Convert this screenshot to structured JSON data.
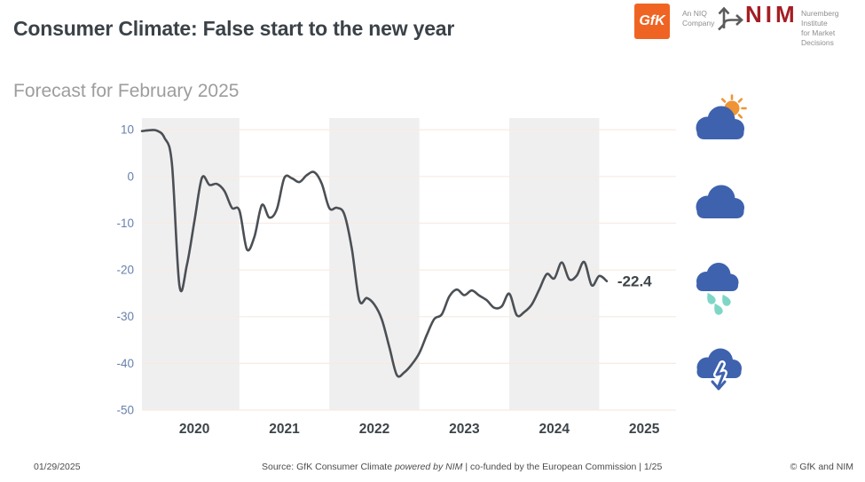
{
  "title": "Consumer Climate: False start to the new year",
  "subtitle": "Forecast for February 2025",
  "logos": {
    "gfk": {
      "label": "GfK",
      "tagline_line1": "An NIQ",
      "tagline_line2": "Company",
      "box_color": "#f06423"
    },
    "nim": {
      "label": "NIM",
      "word_color": "#a41e23",
      "tagline_line1": "Nuremberg Institute",
      "tagline_line2": "for Market Decisions"
    }
  },
  "weather_icons": [
    "sun-behind-cloud",
    "cloud",
    "cloud-with-rain",
    "cloud-with-down-arrow"
  ],
  "colors": {
    "cloud_blue": "#3e62ae",
    "sun_orange": "#ef9434",
    "rain_teal": "#7fd6c7",
    "title_dark": "#3b4247",
    "subtitle_gray": "#9d9d9d"
  },
  "chart_data": {
    "type": "line",
    "title": "",
    "xlabel": "",
    "ylabel": "",
    "x_start_month": "2019-12",
    "x_end_month": "2025-02",
    "x_tick_labels": [
      "2020",
      "2021",
      "2022",
      "2023",
      "2024",
      "2025"
    ],
    "shaded_years": [
      "2020",
      "2022",
      "2024"
    ],
    "y_ticks": [
      10,
      0,
      -10,
      -20,
      -30,
      -40,
      -50
    ],
    "ylim": [
      -50,
      12.5
    ],
    "grid": "horizontal",
    "legend": "none",
    "band_color": "#f0eff0",
    "gridline_color": "#f7ebe2",
    "axis_tick_color": "#6781ae",
    "year_label_color": "#3d4448",
    "last_value_label": "-22.4",
    "series": [
      {
        "name": "GfK Consumer Climate",
        "color": "#4b5055",
        "frequency": "monthly",
        "values": [
          9.7,
          9.9,
          9.8,
          8.3,
          2.7,
          -23.4,
          -18.9,
          -9.6,
          -0.3,
          -1.8,
          -1.6,
          -3.1,
          -6.7,
          -7.3,
          -15.6,
          -12.9,
          -6.1,
          -8.8,
          -7.0,
          -0.3,
          -0.4,
          -1.2,
          0.3,
          0.9,
          -1.6,
          -6.8,
          -6.7,
          -8.1,
          -15.5,
          -26.5,
          -26.0,
          -27.4,
          -30.6,
          -36.5,
          -42.5,
          -41.9,
          -40.2,
          -37.8,
          -33.9,
          -30.5,
          -29.5,
          -25.7,
          -24.2,
          -25.4,
          -24.4,
          -25.5,
          -26.5,
          -28.1,
          -27.8,
          -25.1,
          -29.7,
          -29.0,
          -27.4,
          -24.2,
          -20.9,
          -21.8,
          -18.4,
          -22.0,
          -21.2,
          -18.3,
          -23.3,
          -21.3,
          -22.4
        ]
      }
    ]
  },
  "footer": {
    "date": "01/29/2025",
    "source_prefix": "Source: GfK Consumer Climate ",
    "source_powered": "powered by NIM",
    "source_suffix": " | co-funded by the European Commission | 1/25",
    "copyright": "© GfK and NIM"
  }
}
